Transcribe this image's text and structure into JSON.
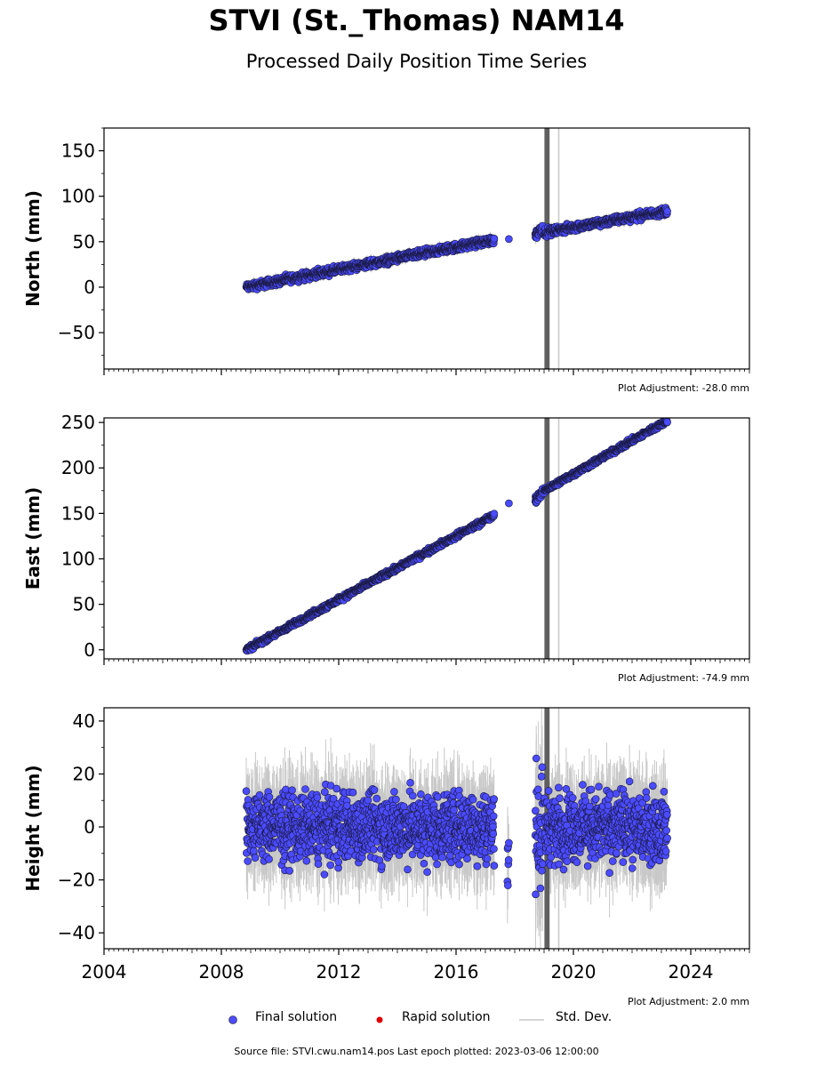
{
  "title": "STVI (St._Thomas) NAM14",
  "subtitle": "Processed Daily Position Time Series",
  "footer": "Source file: STVI.cwu.nam14.pos  Last epoch plotted: 2023-03-06 12:00:00",
  "legend": {
    "final": "Final solution",
    "rapid": "Rapid solution",
    "std": "Std. Dev."
  },
  "colors": {
    "final": "#4b4bff",
    "rapid": "#e00000",
    "std": "#c8c8c8",
    "std_dark": "#606060"
  },
  "chart_data": [
    {
      "type": "scatter",
      "ylabel": "North (mm)",
      "xlim": [
        2004,
        2026
      ],
      "ylim": [
        -90,
        175
      ],
      "yticks": [
        "150",
        "100",
        "50",
        "0",
        "−50"
      ],
      "adjustment": "Plot Adjustment: -28.0 mm",
      "segments": [
        {
          "x": [
            2008.85,
            2017.3
          ],
          "y": [
            0,
            52
          ],
          "noise": 3
        },
        {
          "x": [
            2017.8,
            2017.8
          ],
          "y": [
            53,
            53
          ],
          "noise": 0
        },
        {
          "x": [
            2018.7,
            2018.95
          ],
          "y": [
            57,
            66
          ],
          "noise": 4
        },
        {
          "x": [
            2019.0,
            2023.2
          ],
          "y": [
            60,
            84
          ],
          "noise": 3
        }
      ]
    },
    {
      "type": "scatter",
      "ylabel": "East (mm)",
      "xlim": [
        2004,
        2026
      ],
      "ylim": [
        -10,
        255
      ],
      "yticks": [
        "250",
        "200",
        "150",
        "100",
        "50",
        "0"
      ],
      "adjustment": "Plot Adjustment: -74.9 mm",
      "segments": [
        {
          "x": [
            2008.85,
            2017.3
          ],
          "y": [
            0,
            148
          ],
          "noise": 2
        },
        {
          "x": [
            2017.8,
            2017.8
          ],
          "y": [
            161,
            161
          ],
          "noise": 0
        },
        {
          "x": [
            2018.7,
            2018.95
          ],
          "y": [
            165,
            172
          ],
          "noise": 3
        },
        {
          "x": [
            2019.0,
            2023.2
          ],
          "y": [
            175,
            252
          ],
          "noise": 2
        }
      ]
    },
    {
      "type": "scatter",
      "ylabel": "Height (mm)",
      "xlim": [
        2004,
        2026
      ],
      "ylim": [
        -46,
        45
      ],
      "yticks": [
        "40",
        "20",
        "0",
        "−20",
        "−40"
      ],
      "xticks": [
        "2004",
        "2008",
        "2012",
        "2016",
        "2020",
        "2024"
      ],
      "adjustment": "Plot Adjustment: 2.0 mm",
      "segments": [
        {
          "x": [
            2008.85,
            2017.3
          ],
          "y": [
            0,
            0
          ],
          "noise": 9
        },
        {
          "x": [
            2017.75,
            2017.8
          ],
          "y": [
            -10,
            -10
          ],
          "noise": 8
        },
        {
          "x": [
            2018.7,
            2018.95
          ],
          "y": [
            0,
            0
          ],
          "noise": 16
        },
        {
          "x": [
            2019.0,
            2023.2
          ],
          "y": [
            0,
            0
          ],
          "noise": 9
        }
      ]
    }
  ]
}
